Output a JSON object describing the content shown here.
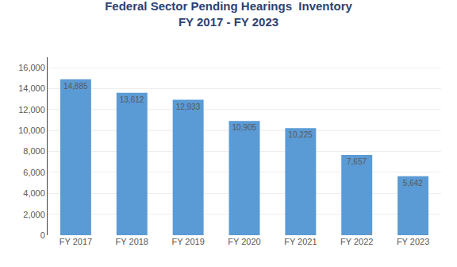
{
  "chart_data": {
    "type": "bar",
    "title": "Federal Sector Pending Hearings  Inventory",
    "subtitle": "FY 2017 - FY 2023",
    "categories": [
      "FY 2017",
      "FY 2018",
      "FY 2019",
      "FY 2020",
      "FY 2021",
      "FY 2022",
      "FY 2023"
    ],
    "values": [
      14885,
      13612,
      12933,
      10905,
      10225,
      7657,
      5642
    ],
    "value_labels": [
      "14,885",
      "13,612",
      "12,933",
      "10,905",
      "10,225",
      "7,657",
      "5,642"
    ],
    "data_labels": true,
    "color": "#5B9BD5",
    "ylim": [
      0,
      17000
    ],
    "yticks": [
      0,
      {
        "value": 2000,
        "label": "2,000"
      },
      {
        "value": 4000,
        "label": "4,000"
      },
      {
        "value": 6000,
        "label": "6,000"
      },
      {
        "value": 8000,
        "label": "8,000"
      },
      {
        "value": 10000,
        "label": "10,000"
      },
      {
        "value": 12000,
        "label": "12,000"
      },
      {
        "value": 14000,
        "label": "14,000"
      },
      {
        "value": 16000,
        "label": "16,000"
      }
    ],
    "grid": true
  }
}
